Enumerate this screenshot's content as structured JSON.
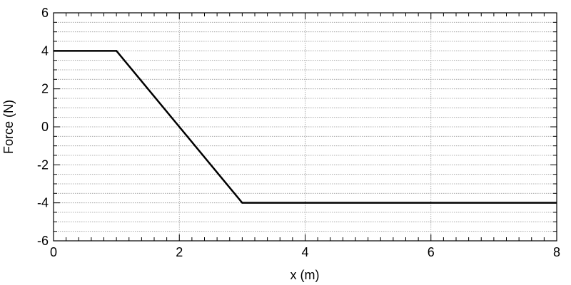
{
  "chart_data": {
    "type": "line",
    "x": [
      0,
      1,
      3,
      8
    ],
    "values": [
      4,
      4,
      -4,
      -4
    ],
    "color": "#000000",
    "xlabel": "x (m)",
    "ylabel": "Force (N)",
    "xlim": [
      0,
      8
    ],
    "xticks": [
      0,
      2,
      4,
      6,
      8
    ],
    "ylim": [
      -6,
      6
    ],
    "yticks": [
      -6,
      -4,
      -2,
      0,
      2,
      4,
      6
    ],
    "xminorticks": [
      0.2,
      0.4,
      0.6,
      0.8,
      1,
      1.2,
      1.4,
      1.6,
      1.8,
      2.2,
      2.4,
      2.6,
      2.8,
      3,
      3.2,
      3.4,
      3.6,
      3.8,
      4.2,
      4.4,
      4.6,
      4.8,
      5,
      5.2,
      5.4,
      5.6,
      5.8,
      6.2,
      6.4,
      6.6,
      6.8,
      7,
      7.2,
      7.4,
      7.6,
      7.8
    ],
    "yminorticks": [
      -5.5,
      -5,
      -4.5,
      -3.5,
      -3,
      -2.5,
      -1.5,
      -1,
      -0.5,
      0.5,
      1,
      1.5,
      2.5,
      3,
      3.5,
      4.5,
      5,
      5.5
    ],
    "grid": true
  }
}
